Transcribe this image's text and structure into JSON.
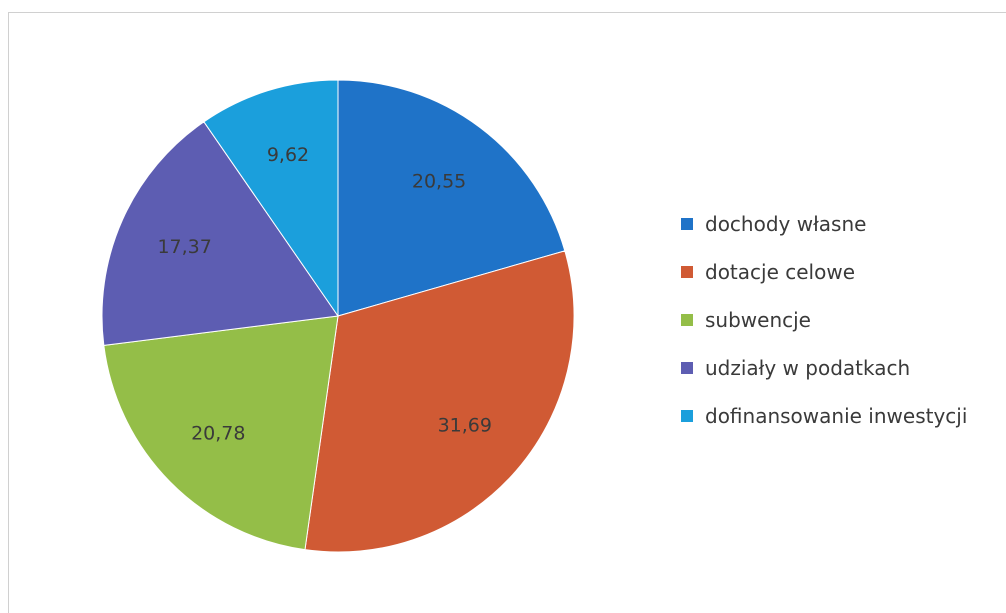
{
  "chart_data": {
    "type": "pie",
    "title": "",
    "decimal_separator": ",",
    "legend_position": "right",
    "start_angle_deg": 0,
    "direction": "clockwise",
    "slices": [
      {
        "label": "dochody własne",
        "value": 20.55,
        "display": "20,55",
        "color": "#1f73c8"
      },
      {
        "label": "dotacje celowe",
        "value": 31.69,
        "display": "31,69",
        "color": "#d05a34"
      },
      {
        "label": "subwencje",
        "value": 20.78,
        "display": "20,78",
        "color": "#94be48"
      },
      {
        "label": "udziały w podatkach",
        "value": 17.37,
        "display": "17,37",
        "color": "#5d5db2"
      },
      {
        "label": "dofinansowanie inwestycji",
        "value": 9.62,
        "display": "9,62",
        "color": "#1b9fdc"
      }
    ]
  }
}
